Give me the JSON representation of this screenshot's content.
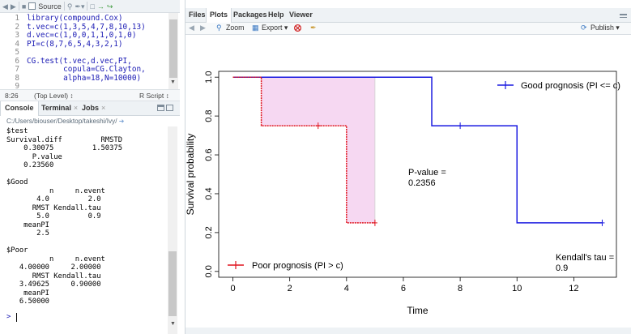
{
  "source_toolbar": {
    "source_label": "Source",
    "toolbar_icons": [
      "back-arrow-icon",
      "forward-arrow-icon",
      "save-icon",
      "search-icon",
      "code-tools-icon",
      "run-icon",
      "rerun-icon"
    ]
  },
  "editor": {
    "line_numbers": [
      "1",
      "2",
      "3",
      "4",
      "5",
      "6",
      "7",
      "8",
      "9"
    ],
    "lines": [
      "library(compound.Cox)",
      "t.vec=c(1,3,5,4,7,8,10,13)",
      "d.vec=c(1,0,0,1,1,0,1,0)",
      "PI=c(8,7,6,5,4,3,2,1)",
      "",
      "CG.test(t.vec,d.vec,PI,",
      "        copula=CG.Clayton,",
      "        alpha=18,N=10000)",
      ""
    ]
  },
  "editor_status": {
    "position": "8:26",
    "scope": "(Top Level) ↕",
    "filetype": "R Script ↕"
  },
  "console_tabs": [
    {
      "label": "Console",
      "closable": false
    },
    {
      "label": "Terminal",
      "closable": true
    },
    {
      "label": "Jobs",
      "closable": true
    }
  ],
  "console_path": "C:/Users/biouser/Desktop/takeshi/Ivy/",
  "console_lines": [
    "$test",
    "Survival.diff         RMSTD",
    "    0.30075         1.50375",
    "      P.value",
    "    0.23560",
    "",
    "$Good",
    "          n     n.event",
    "       4.0         2.0",
    "      RMST Kendall.tau",
    "       5.0         0.9",
    "    meanPI",
    "       2.5",
    "",
    "$Poor",
    "          n     n.event",
    "   4.00000     2.00000",
    "      RMST Kendall.tau",
    "   3.49625     0.90000",
    "    meanPI",
    "   6.50000"
  ],
  "console_prompt": ">",
  "right_tabs": [
    {
      "label": "Files"
    },
    {
      "label": "Plots"
    },
    {
      "label": "Packages"
    },
    {
      "label": "Help"
    },
    {
      "label": "Viewer"
    }
  ],
  "active_right_tab": "Plots",
  "plot_toolbar": {
    "zoom_label": "Zoom",
    "export_label": "Export ▾",
    "publish_label": "Publish ▾"
  },
  "chart_data": {
    "type": "line",
    "xlabel": "Time",
    "ylabel": "Survival probability",
    "xlim": [
      -0.5,
      13.5
    ],
    "ylim": [
      -0.03,
      1.03
    ],
    "xticks": [
      0,
      2,
      4,
      6,
      8,
      10,
      12
    ],
    "yticks": [
      0.0,
      0.2,
      0.4,
      0.6,
      0.8,
      1.0
    ],
    "xtick_labels": [
      "0",
      "2",
      "4",
      "6",
      "8",
      "10",
      "12"
    ],
    "ytick_labels": [
      "0.0",
      "0.2",
      "0.4",
      "0.6",
      "0.8",
      "1.0"
    ],
    "grid": false,
    "series": [
      {
        "name": "Good prognosis (PI <= c)",
        "color": "#1a1ae0",
        "dashed": false,
        "steps": [
          [
            0,
            1.0
          ],
          [
            7,
            0.75
          ],
          [
            10,
            0.25
          ],
          [
            13,
            0.25
          ]
        ],
        "censored": [
          [
            8,
            0.75
          ],
          [
            13,
            0.25
          ]
        ]
      },
      {
        "name": "Poor prognosis (PI > c)",
        "color": "#e0141e",
        "dashed": true,
        "steps": [
          [
            0,
            1.0
          ],
          [
            1,
            0.75
          ],
          [
            4,
            0.25
          ],
          [
            5,
            0.25
          ]
        ],
        "censored": [
          [
            3,
            0.75
          ],
          [
            5,
            0.25
          ]
        ]
      }
    ],
    "legend": {
      "good_position": "top-right",
      "poor_position": "bottom-left"
    },
    "rmst_shading": {
      "from": 0,
      "to": 5,
      "color": "#f6d8f2"
    },
    "annotations": {
      "pvalue_label": "P-value =",
      "pvalue_value": "0.2356",
      "kendall_label": "Kendall's tau =",
      "kendall_value": "0.9"
    }
  }
}
